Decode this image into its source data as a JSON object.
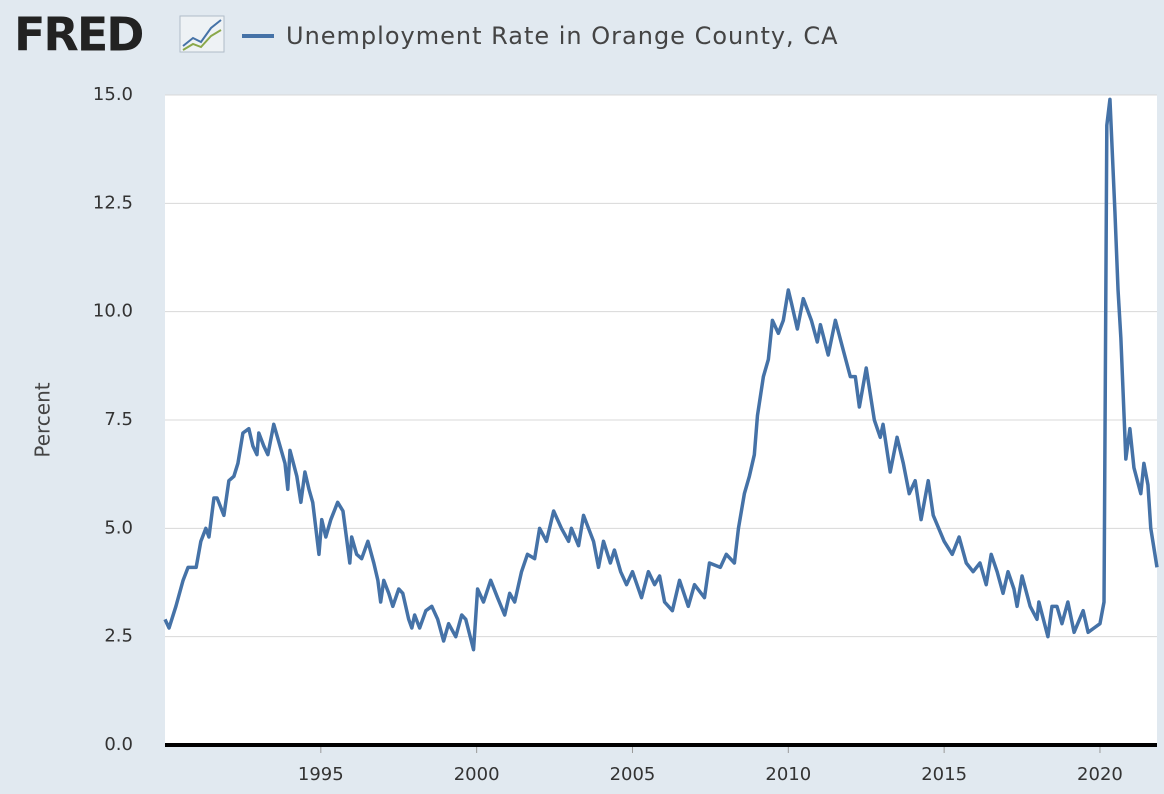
{
  "logo": "FRED",
  "chart_data": {
    "type": "line",
    "y_label": "Percent",
    "x": [
      1990.0,
      1990.13,
      1990.35,
      1990.58,
      1990.74,
      1991.0,
      1991.15,
      1991.31,
      1991.41,
      1991.57,
      1991.67,
      1991.89,
      1992.05,
      1992.21,
      1992.34,
      1992.5,
      1992.69,
      1992.82,
      1992.95,
      1993.01,
      1993.17,
      1993.3,
      1993.49,
      1993.65,
      1993.85,
      1993.94,
      1994.01,
      1994.23,
      1994.36,
      1994.49,
      1994.62,
      1994.74,
      1994.94,
      1995.03,
      1995.16,
      1995.32,
      1995.54,
      1995.71,
      1995.93,
      1995.99,
      1996.15,
      1996.31,
      1996.51,
      1996.7,
      1996.83,
      1996.92,
      1997.02,
      1997.18,
      1997.31,
      1997.5,
      1997.63,
      1997.82,
      1997.92,
      1998.01,
      1998.17,
      1998.37,
      1998.56,
      1998.75,
      1998.94,
      1999.1,
      1999.33,
      1999.52,
      1999.65,
      1999.9,
      2000.03,
      2000.22,
      2000.45,
      2000.67,
      2000.9,
      2001.06,
      2001.22,
      2001.44,
      2001.63,
      2001.86,
      2002.02,
      2002.24,
      2002.47,
      2002.72,
      2002.95,
      2003.04,
      2003.27,
      2003.43,
      2003.59,
      2003.75,
      2003.91,
      2004.07,
      2004.29,
      2004.42,
      2004.62,
      2004.81,
      2005.0,
      2005.29,
      2005.51,
      2005.71,
      2005.87,
      2006.03,
      2006.28,
      2006.51,
      2006.79,
      2006.99,
      2007.31,
      2007.47,
      2007.82,
      2008.01,
      2008.27,
      2008.4,
      2008.59,
      2008.75,
      2008.91,
      2009.01,
      2009.2,
      2009.36,
      2009.49,
      2009.68,
      2009.84,
      2010.0,
      2010.1,
      2010.29,
      2010.48,
      2010.74,
      2010.93,
      2011.03,
      2011.28,
      2011.51,
      2011.73,
      2011.99,
      2012.15,
      2012.28,
      2012.5,
      2012.76,
      2012.95,
      2013.04,
      2013.27,
      2013.49,
      2013.69,
      2013.88,
      2014.07,
      2014.26,
      2014.49,
      2014.65,
      2015.0,
      2015.26,
      2015.48,
      2015.71,
      2015.93,
      2016.15,
      2016.35,
      2016.51,
      2016.7,
      2016.89,
      2017.05,
      2017.24,
      2017.34,
      2017.5,
      2017.76,
      2017.98,
      2018.04,
      2018.33,
      2018.46,
      2018.62,
      2018.78,
      2018.97,
      2019.17,
      2019.46,
      2019.62,
      2019.81,
      2020.0,
      2020.13,
      2020.22,
      2020.32,
      2020.48,
      2020.58,
      2020.67,
      2020.83,
      2020.96,
      2021.09,
      2021.31,
      2021.41,
      2021.54,
      2021.63,
      2021.83
    ],
    "series": [
      {
        "name": "Unemployment Rate in Orange County, CA",
        "color": "#4572a7",
        "values": [
          2.9,
          2.7,
          3.2,
          3.8,
          4.1,
          4.1,
          4.7,
          5.0,
          4.8,
          5.7,
          5.7,
          5.3,
          6.1,
          6.2,
          6.5,
          7.2,
          7.3,
          6.9,
          6.7,
          7.2,
          6.9,
          6.7,
          7.4,
          7.0,
          6.5,
          5.9,
          6.8,
          6.2,
          5.6,
          6.3,
          5.9,
          5.6,
          4.4,
          5.2,
          4.8,
          5.2,
          5.6,
          5.4,
          4.2,
          4.8,
          4.4,
          4.3,
          4.7,
          4.2,
          3.8,
          3.3,
          3.8,
          3.5,
          3.2,
          3.6,
          3.5,
          2.9,
          2.7,
          3.0,
          2.7,
          3.1,
          3.2,
          2.9,
          2.4,
          2.8,
          2.5,
          3.0,
          2.9,
          2.2,
          3.6,
          3.3,
          3.8,
          3.4,
          3.0,
          3.5,
          3.3,
          4.0,
          4.4,
          4.3,
          5.0,
          4.7,
          5.4,
          5.0,
          4.7,
          5.0,
          4.6,
          5.3,
          5.0,
          4.7,
          4.1,
          4.7,
          4.2,
          4.5,
          4.0,
          3.7,
          4.0,
          3.4,
          4.0,
          3.7,
          3.9,
          3.3,
          3.1,
          3.8,
          3.2,
          3.7,
          3.4,
          4.2,
          4.1,
          4.4,
          4.2,
          5.0,
          5.8,
          6.2,
          6.7,
          7.6,
          8.5,
          8.9,
          9.8,
          9.5,
          9.8,
          10.5,
          10.2,
          9.6,
          10.3,
          9.8,
          9.3,
          9.7,
          9.0,
          9.8,
          9.2,
          8.5,
          8.5,
          7.8,
          8.7,
          7.5,
          7.1,
          7.4,
          6.3,
          7.1,
          6.5,
          5.8,
          6.1,
          5.2,
          6.1,
          5.3,
          4.7,
          4.4,
          4.8,
          4.2,
          4.0,
          4.2,
          3.7,
          4.4,
          4.0,
          3.5,
          4.0,
          3.6,
          3.2,
          3.9,
          3.2,
          2.9,
          3.3,
          2.5,
          3.2,
          3.2,
          2.8,
          3.3,
          2.6,
          3.1,
          2.6,
          2.7,
          2.8,
          3.3,
          14.3,
          14.9,
          12.3,
          10.5,
          9.4,
          6.6,
          7.3,
          6.4,
          5.8,
          6.5,
          6.0,
          5.0,
          4.1
        ]
      }
    ],
    "xlim": [
      1990,
      2021.83
    ],
    "xticks": [
      1995,
      2000,
      2005,
      2010,
      2015,
      2020
    ],
    "ylim": [
      0,
      15
    ],
    "yticks": [
      {
        "value": 0,
        "label": "0.0"
      },
      2.5,
      {
        "value": 5,
        "label": "5.0"
      },
      7.5,
      {
        "value": 10,
        "label": "10.0"
      },
      12.5,
      {
        "value": 15,
        "label": "15.0"
      }
    ],
    "grid": true
  }
}
